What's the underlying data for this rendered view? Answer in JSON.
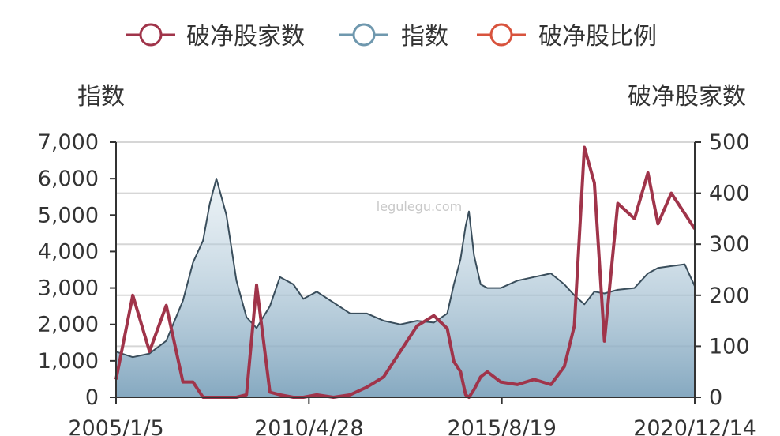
{
  "watermark": "legulegu.com",
  "legend": [
    {
      "name": "破净股家数",
      "color": "#a0344a"
    },
    {
      "name": "指数",
      "color": "#6f98ae"
    },
    {
      "name": "破净股比例",
      "color": "#d8533d"
    }
  ],
  "chart_data": {
    "type": "line",
    "left_axis": {
      "name": "指数",
      "min": 0,
      "max": 7000,
      "ticks": [
        "0",
        "1,000",
        "2,000",
        "3,000",
        "4,000",
        "5,000",
        "6,000",
        "7,000"
      ]
    },
    "right_axis": {
      "name": "破净股家数",
      "min": 0,
      "max": 500,
      "ticks": [
        "0",
        "100",
        "200",
        "300",
        "400",
        "500"
      ]
    },
    "x_tick_labels": [
      "2005/1/5",
      "2010/4/28",
      "2015/8/19",
      "2020/12/14"
    ],
    "x": [
      2005.0,
      2005.5,
      2006.0,
      2006.5,
      2007.0,
      2007.3,
      2007.6,
      2007.8,
      2008.0,
      2008.3,
      2008.6,
      2008.9,
      2009.2,
      2009.6,
      2009.9,
      2010.3,
      2010.6,
      2011.0,
      2011.5,
      2012.0,
      2012.5,
      2013.0,
      2013.5,
      2014.0,
      2014.5,
      2014.9,
      2015.1,
      2015.3,
      2015.45,
      2015.55,
      2015.7,
      2015.9,
      2016.1,
      2016.5,
      2017.0,
      2017.5,
      2018.0,
      2018.4,
      2018.7,
      2019.0,
      2019.3,
      2019.6,
      2020.0,
      2020.5,
      2020.9,
      2021.2,
      2021.6,
      2022.0,
      2022.3
    ],
    "series": [
      {
        "name": "指数",
        "axis": "left",
        "color": "#3a4e5c",
        "values": [
          1250,
          1100,
          1200,
          1550,
          2650,
          3700,
          4300,
          5300,
          6000,
          5000,
          3200,
          2200,
          1900,
          2500,
          3300,
          3100,
          2700,
          2900,
          2600,
          2300,
          2300,
          2100,
          2000,
          2100,
          2050,
          2300,
          3100,
          3800,
          4700,
          5100,
          3900,
          3100,
          3000,
          3000,
          3200,
          3300,
          3400,
          3100,
          2800,
          2550,
          2900,
          2850,
          2950,
          3000,
          3400,
          3550,
          3600,
          3650,
          3050
        ]
      },
      {
        "name": "破净股家数",
        "axis": "right",
        "color": "#a0344a",
        "values": [
          35,
          200,
          90,
          180,
          30,
          30,
          0,
          0,
          0,
          0,
          0,
          5,
          220,
          10,
          5,
          0,
          0,
          5,
          0,
          5,
          20,
          40,
          90,
          140,
          160,
          135,
          70,
          50,
          5,
          0,
          15,
          40,
          50,
          30,
          25,
          35,
          25,
          60,
          140,
          490,
          420,
          110,
          380,
          350,
          440,
          340,
          400,
          360,
          330
        ]
      }
    ]
  }
}
